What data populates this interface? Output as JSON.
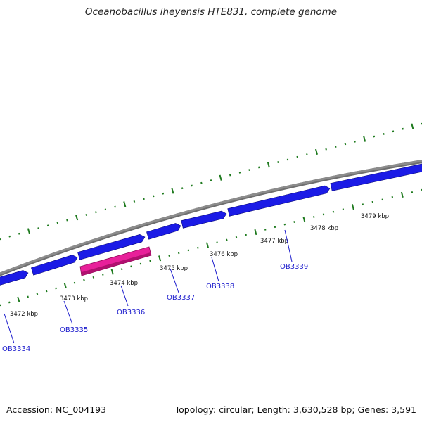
{
  "title": "Oceanobacillus iheyensis HTE831, complete genome",
  "accession": "Accession: NC_004193",
  "summary": "Topology: circular; Length: 3,630,528 bp; Genes: 3,591",
  "colors": {
    "backbone": "#8c8c8c",
    "gene_forward": "#1b1be6",
    "gene_highlight": "#e8209a",
    "ticks": "#1e7a1e",
    "gene_label": "#1a1acc"
  },
  "scale_ticks": [
    {
      "label": "3472 kbp"
    },
    {
      "label": "3473 kbp"
    },
    {
      "label": "3474 kbp"
    },
    {
      "label": "3475 kbp"
    },
    {
      "label": "3476 kbp"
    },
    {
      "label": "3477 kbp"
    },
    {
      "label": "3478 kbp"
    },
    {
      "label": "3479 kbp"
    }
  ],
  "genes": [
    {
      "label": "OB3334"
    },
    {
      "label": "OB3335"
    },
    {
      "label": "OB3336"
    },
    {
      "label": "OB3337"
    },
    {
      "label": "OB3338"
    },
    {
      "label": "OB3339"
    }
  ]
}
